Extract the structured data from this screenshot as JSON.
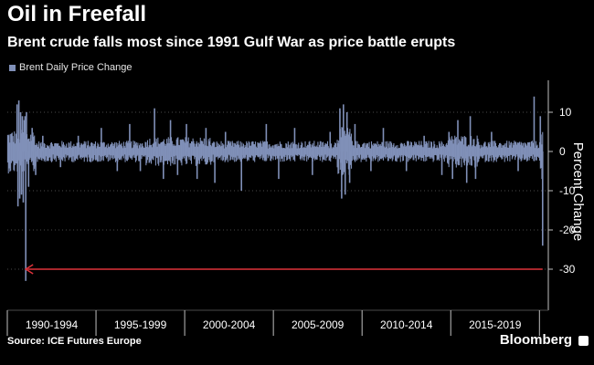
{
  "title": "Oil in Freefall",
  "subtitle": "Brent crude falls most since 1991 Gulf War as price battle erupts",
  "source": "Source: ICE Futures Europe",
  "brand": "Bloomberg",
  "colors": {
    "series": "#8090b8",
    "arrow": "#e0323a",
    "axis": "#bfbfbf",
    "grid": "#4a4a4a",
    "background": "#000000"
  },
  "chart_data": {
    "type": "bar",
    "xlabel": "",
    "ylabel": "Percent Change",
    "ylim": [
      -40,
      18
    ],
    "yticks": [
      10,
      0,
      -10,
      -20,
      -30
    ],
    "x_range": [
      1990,
      2020.5
    ],
    "categories": [
      "1990-1994",
      "1995-1999",
      "2000-2004",
      "2005-2009",
      "2010-2014",
      "2015-2019"
    ],
    "legend": {
      "position": "top-left"
    },
    "grid": true,
    "series": [
      {
        "name": "Brent Daily Price Change",
        "x": [
          1990.55,
          1990.6,
          1990.65,
          1990.7,
          1990.75,
          1990.8,
          1990.85,
          1990.9,
          1990.95,
          1991.0,
          1991.04,
          1991.08,
          1991.2,
          1991.4,
          1991.6,
          1992.0,
          1993.0,
          1994.0,
          1995.3,
          1996.2,
          1996.9,
          1997.5,
          1998.3,
          1998.8,
          1999.2,
          1999.6,
          2000.1,
          2000.7,
          2001.2,
          2001.7,
          2002.3,
          2003.2,
          2004.6,
          2005.3,
          2006.2,
          2007.2,
          2008.2,
          2008.75,
          2008.85,
          2008.95,
          2009.05,
          2009.15,
          2009.3,
          2009.6,
          2010.5,
          2011.2,
          2012.5,
          2013.5,
          2014.5,
          2014.9,
          2015.1,
          2015.4,
          2015.9,
          2016.1,
          2016.4,
          2017.3,
          2018.8,
          2019.7,
          2020.05,
          2020.15,
          2020.18
        ],
        "values": [
          12,
          -14,
          13,
          -12,
          10,
          -11,
          9,
          -13,
          8,
          9,
          -33,
          10,
          -9,
          6,
          -6,
          4,
          -4,
          4,
          6,
          -5,
          7,
          -5,
          11,
          -7,
          8,
          -6,
          7,
          -7,
          6,
          -8,
          5,
          -10,
          7,
          -7,
          6,
          -6,
          5,
          11,
          -12,
          12,
          -11,
          10,
          -8,
          7,
          -5,
          6,
          -5,
          4,
          -6,
          5,
          -7,
          8,
          -8,
          9,
          -7,
          5,
          -5,
          14,
          9,
          -7,
          -24
        ]
      }
    ],
    "annotations": [
      {
        "type": "arrow",
        "from_x": 2020.18,
        "to_x": 1991.04,
        "y": -30
      }
    ]
  }
}
